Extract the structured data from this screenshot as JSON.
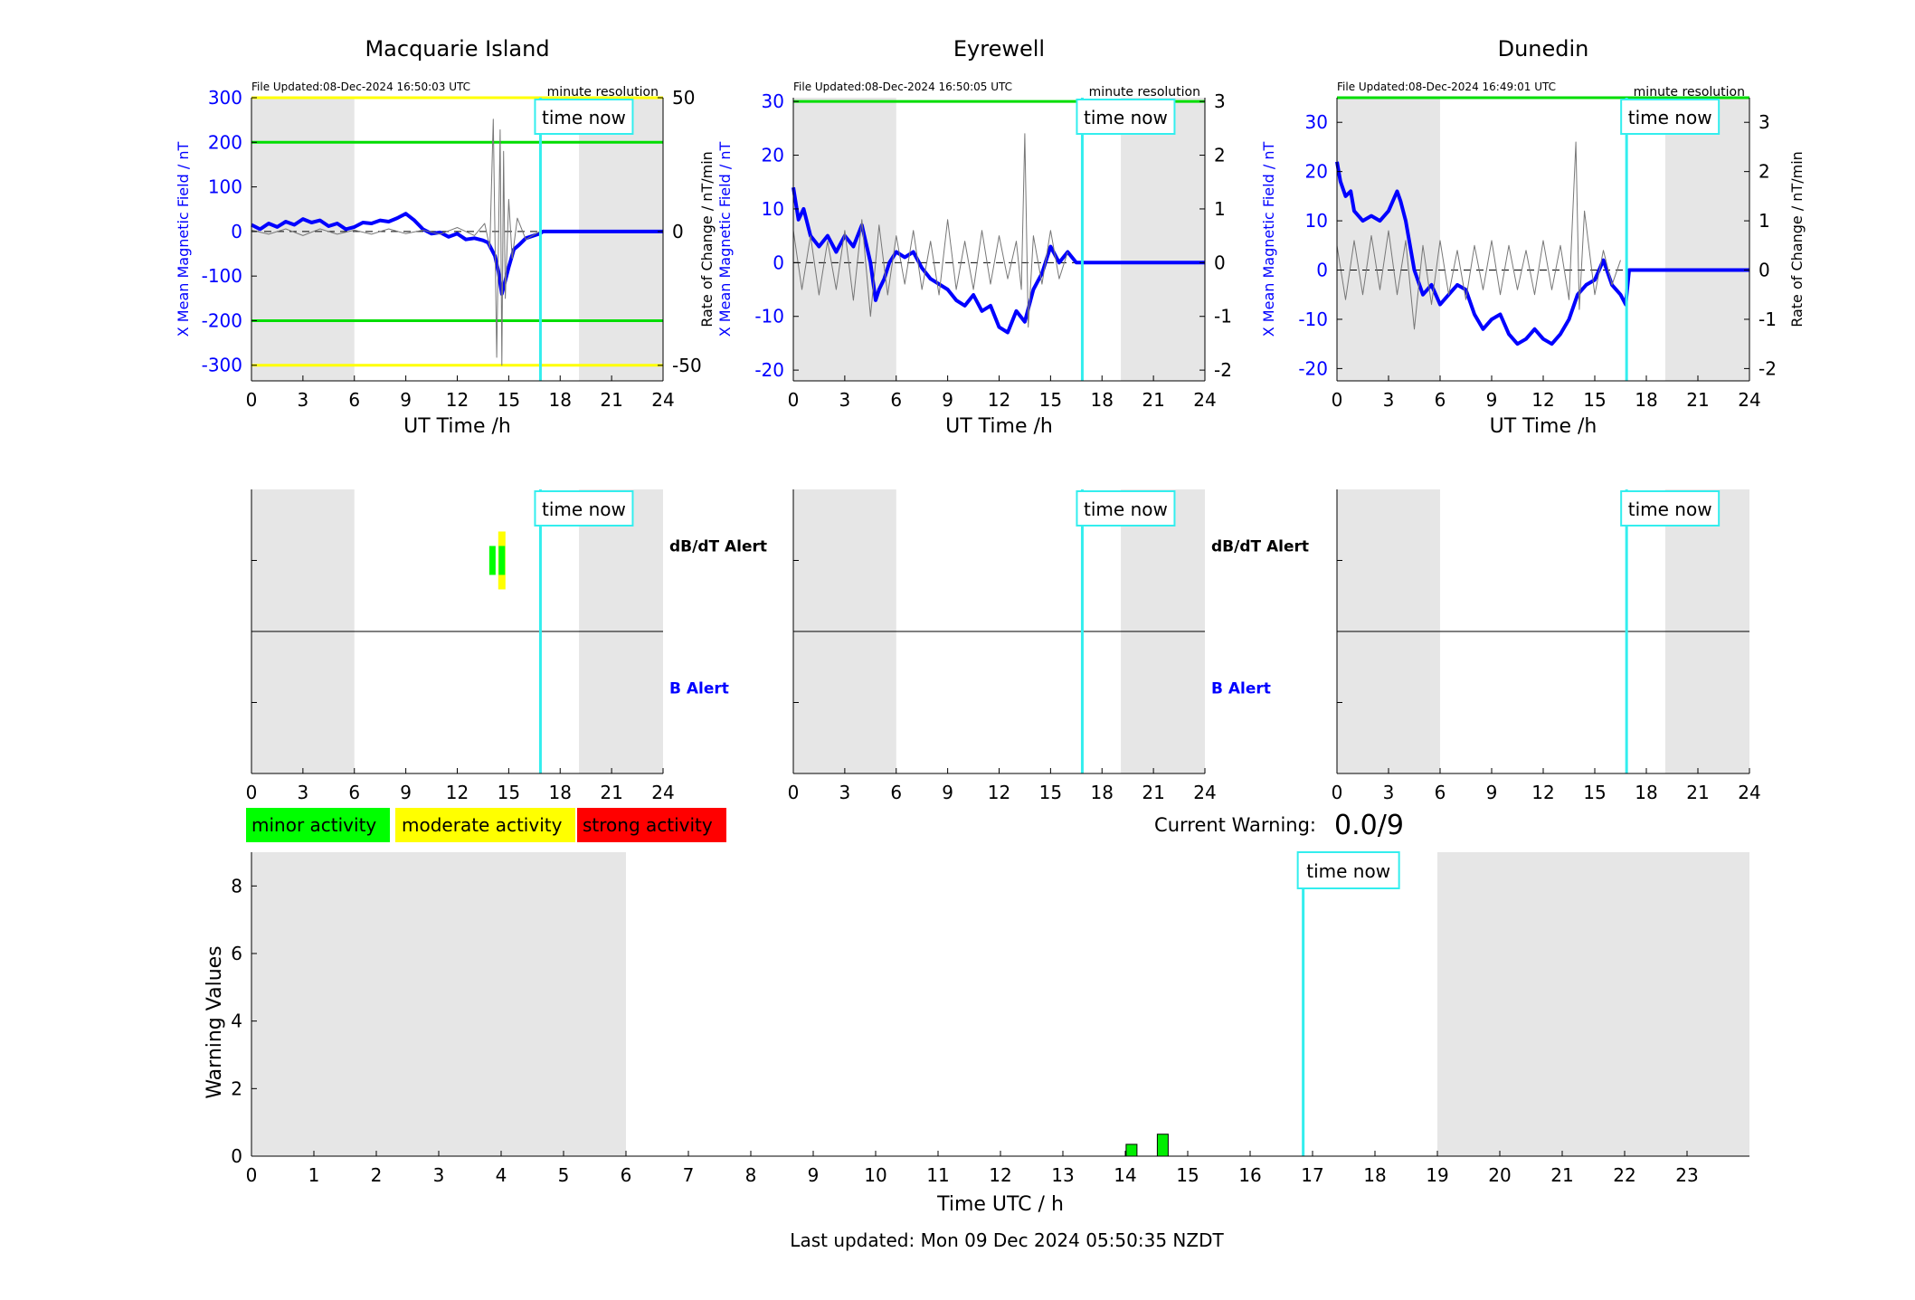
{
  "figure": {
    "last_updated": "Last updated: Mon 09 Dec 2024 05:50:35 NZDT",
    "current_warning_label": "Current Warning:",
    "current_warning_value": "0.0/9",
    "time_now_label": "time now",
    "time_now_ut": 16.85
  },
  "chart_data": [
    {
      "type": "line",
      "title": "Macquarie Island",
      "file_updated": "File Updated:08-Dec-2024 16:50:03 UTC",
      "resolution": "minute resolution",
      "xlabel": "UT Time /h",
      "ylabel": "X Mean Magnetic Field / nT",
      "y2label": "",
      "xlim": [
        0,
        24
      ],
      "ylim": [
        -335,
        300
      ],
      "y2lim": [
        -55.8,
        50
      ],
      "xticks": [
        0,
        3,
        6,
        9,
        12,
        15,
        18,
        21,
        24
      ],
      "yticks": [
        -300,
        -200,
        -100,
        0,
        100,
        200,
        300
      ],
      "y2ticks": [
        -50,
        0,
        50
      ],
      "night_shading": [
        [
          0,
          6
        ],
        [
          19.1,
          24
        ]
      ],
      "threshold_lines": [
        {
          "y": 200,
          "color": "#00dd00"
        },
        {
          "y": -200,
          "color": "#00dd00"
        },
        {
          "y": 300,
          "color": "#ffff00"
        },
        {
          "y": -300,
          "color": "#ffff00"
        }
      ],
      "series": [
        {
          "name": "",
          "axis": "left",
          "color": "#0000ff",
          "x": [
            0,
            0.5,
            1,
            1.5,
            2,
            2.5,
            3,
            3.5,
            4,
            4.5,
            5,
            5.5,
            6,
            6.5,
            7,
            7.5,
            8,
            8.5,
            9,
            9.5,
            10,
            10.5,
            11,
            11.5,
            12,
            12.5,
            13,
            13.5,
            13.8,
            14,
            14.2,
            14.4,
            14.6,
            14.8,
            15,
            15.3,
            15.6,
            16,
            16.4,
            16.8,
            17,
            18,
            19,
            20,
            21,
            22,
            23,
            24
          ],
          "y": [
            15,
            5,
            18,
            10,
            22,
            15,
            28,
            20,
            25,
            12,
            18,
            5,
            10,
            20,
            18,
            25,
            22,
            30,
            40,
            25,
            5,
            -5,
            -2,
            -12,
            -5,
            -18,
            -15,
            -20,
            -25,
            -40,
            -55,
            -90,
            -140,
            -110,
            -80,
            -40,
            -30,
            -15,
            -10,
            -5,
            0,
            0,
            0,
            0,
            0,
            0,
            0,
            0
          ]
        },
        {
          "name": "",
          "axis": "right",
          "color": "#777777",
          "x": [
            0,
            1,
            2,
            3,
            4,
            5,
            6,
            7,
            8,
            9,
            10,
            11,
            12,
            13,
            13.6,
            13.9,
            14.1,
            14.3,
            14.5,
            14.6,
            14.7,
            14.8,
            15,
            15.2,
            15.5,
            16,
            16.8
          ],
          "y": [
            0.5,
            -1,
            1,
            -1.5,
            1,
            -1,
            0.5,
            -1,
            1,
            -0.8,
            0.5,
            -1,
            1.5,
            -1.5,
            3,
            -6,
            42,
            -47,
            38,
            -50,
            30,
            -25,
            12,
            -10,
            5,
            -3,
            0
          ]
        }
      ]
    },
    {
      "type": "line",
      "title": "Eyrewell",
      "file_updated": "File Updated:08-Dec-2024 16:50:05 UTC",
      "resolution": "minute resolution",
      "xlabel": "UT Time /h",
      "ylabel": "X Mean Magnetic Field / nT",
      "y2label": "Rate of Change / nT/min",
      "xlim": [
        0,
        24
      ],
      "ylim": [
        -22,
        30.7
      ],
      "y2lim": [
        -2.2,
        3.07
      ],
      "xticks": [
        0,
        3,
        6,
        9,
        12,
        15,
        18,
        21,
        24
      ],
      "yticks": [
        -20,
        -10,
        0,
        10,
        20,
        30
      ],
      "y2ticks": [
        -2,
        -1,
        0,
        1,
        2,
        3
      ],
      "night_shading": [
        [
          0,
          6
        ],
        [
          19.1,
          24
        ]
      ],
      "threshold_lines": [
        {
          "y": 30,
          "color": "#00dd00"
        }
      ],
      "series": [
        {
          "name": "",
          "axis": "left",
          "color": "#0000ff",
          "x": [
            0,
            0.3,
            0.6,
            1,
            1.5,
            2,
            2.5,
            3,
            3.5,
            4,
            4.5,
            4.8,
            5,
            5.3,
            5.6,
            6,
            6.5,
            7,
            7.5,
            8,
            8.5,
            9,
            9.5,
            10,
            10.5,
            11,
            11.5,
            12,
            12.5,
            13,
            13.5,
            14,
            14.5,
            15,
            15.5,
            16,
            16.5,
            17,
            18,
            19,
            20,
            21,
            22,
            23,
            24
          ],
          "y": [
            14,
            8,
            10,
            5,
            3,
            5,
            2,
            5,
            3,
            7,
            0,
            -7,
            -5,
            -3,
            0,
            2,
            1,
            2,
            -1,
            -3,
            -4,
            -5,
            -7,
            -8,
            -6,
            -9,
            -8,
            -12,
            -13,
            -9,
            -11,
            -5,
            -2,
            3,
            0,
            2,
            0,
            0,
            0,
            0,
            0,
            0,
            0,
            0,
            0
          ]
        },
        {
          "name": "",
          "axis": "right",
          "color": "#777777",
          "x": [
            0,
            0.5,
            1,
            1.5,
            2,
            2.5,
            3,
            3.5,
            4,
            4.5,
            5,
            5.5,
            6,
            6.5,
            7,
            7.5,
            8,
            8.5,
            9,
            9.5,
            10,
            10.5,
            11,
            11.5,
            12,
            12.5,
            13,
            13.3,
            13.5,
            13.7,
            14,
            14.5,
            15,
            15.5,
            16
          ],
          "y": [
            0.6,
            -0.5,
            0.5,
            -0.6,
            0.4,
            -0.5,
            0.6,
            -0.7,
            0.8,
            -1,
            0.7,
            -0.6,
            0.5,
            -0.4,
            0.6,
            -0.5,
            0.4,
            -0.6,
            0.8,
            -0.5,
            0.4,
            -0.5,
            0.6,
            -0.4,
            0.5,
            -0.3,
            0.4,
            -0.5,
            2.4,
            -1.2,
            0.5,
            -0.4,
            0.6,
            -0.3,
            0.2
          ]
        }
      ]
    },
    {
      "type": "line",
      "title": "Dunedin",
      "file_updated": "File Updated:08-Dec-2024 16:49:01 UTC",
      "resolution": "minute resolution",
      "xlabel": "UT Time /h",
      "ylabel": "X Mean Magnetic Field / nT",
      "y2label": "Rate of Change / nT/min",
      "xlim": [
        0,
        24
      ],
      "ylim": [
        -22.5,
        35
      ],
      "y2lim": [
        -2.25,
        3.5
      ],
      "xticks": [
        0,
        3,
        6,
        9,
        12,
        15,
        18,
        21,
        24
      ],
      "yticks": [
        -20,
        -10,
        0,
        10,
        20,
        30
      ],
      "y2ticks": [
        -2,
        -1,
        0,
        1,
        2,
        3
      ],
      "night_shading": [
        [
          0,
          6
        ],
        [
          19.1,
          24
        ]
      ],
      "threshold_lines": [
        {
          "y": 35,
          "color": "#00dd00"
        }
      ],
      "series": [
        {
          "name": "",
          "axis": "left",
          "color": "#0000ff",
          "x": [
            0,
            0.2,
            0.5,
            0.8,
            1,
            1.5,
            2,
            2.5,
            3,
            3.5,
            3.7,
            4,
            4.5,
            5,
            5.5,
            6,
            6.5,
            7,
            7.5,
            8,
            8.5,
            9,
            9.5,
            10,
            10.5,
            11,
            11.5,
            12,
            12.5,
            13,
            13.5,
            14,
            14.5,
            15,
            15.5,
            16,
            16.5,
            16.8,
            17,
            18,
            19,
            20,
            21,
            22,
            23,
            24
          ],
          "y": [
            22,
            18,
            15,
            16,
            12,
            10,
            11,
            10,
            12,
            16,
            14,
            10,
            0,
            -5,
            -3,
            -7,
            -5,
            -3,
            -4,
            -9,
            -12,
            -10,
            -9,
            -13,
            -15,
            -14,
            -12,
            -14,
            -15,
            -13,
            -10,
            -5,
            -3,
            -2,
            2,
            -3,
            -5,
            -7,
            0,
            0,
            0,
            0,
            0,
            0,
            0,
            0
          ]
        },
        {
          "name": "",
          "axis": "right",
          "color": "#777777",
          "x": [
            0,
            0.5,
            1,
            1.5,
            2,
            2.5,
            3,
            3.5,
            4,
            4.5,
            5,
            5.5,
            6,
            6.5,
            7,
            7.5,
            8,
            8.5,
            9,
            9.5,
            10,
            10.5,
            11,
            11.5,
            12,
            12.5,
            13,
            13.5,
            13.9,
            14.1,
            14.4,
            15,
            15.5,
            16,
            16.5
          ],
          "y": [
            0.5,
            -0.6,
            0.6,
            -0.5,
            0.7,
            -0.4,
            0.8,
            -0.5,
            0.6,
            -1.2,
            0.5,
            -0.7,
            0.6,
            -0.5,
            0.4,
            -0.6,
            0.5,
            -0.4,
            0.6,
            -0.5,
            0.5,
            -0.4,
            0.4,
            -0.5,
            0.6,
            -0.4,
            0.5,
            -0.6,
            2.6,
            -0.8,
            1.2,
            -0.5,
            0.4,
            -0.3,
            0.2
          ]
        }
      ]
    },
    {
      "type": "bar",
      "title": "",
      "xlabel": "",
      "xlim": [
        0,
        24
      ],
      "xticks": [
        0,
        3,
        6,
        9,
        12,
        15,
        18,
        21,
        24
      ],
      "night_shading": [
        [
          0,
          6
        ],
        [
          19.1,
          24
        ]
      ],
      "upper_label": "dB/dT Alert",
      "lower_label": "B Alert",
      "upper_alerts": [
        {
          "x": 14.05,
          "level": "minor"
        },
        {
          "x": 14.6,
          "level": "moderate"
        },
        {
          "x": 14.6,
          "level": "minor"
        }
      ],
      "lower_alerts": []
    },
    {
      "type": "bar",
      "title": "",
      "xlabel": "",
      "xlim": [
        0,
        24
      ],
      "xticks": [
        0,
        3,
        6,
        9,
        12,
        15,
        18,
        21,
        24
      ],
      "night_shading": [
        [
          0,
          6
        ],
        [
          19.1,
          24
        ]
      ],
      "upper_label": "dB/dT Alert",
      "lower_label": "B Alert",
      "upper_alerts": [],
      "lower_alerts": []
    },
    {
      "type": "bar",
      "title": "",
      "xlabel": "",
      "xlim": [
        0,
        24
      ],
      "xticks": [
        0,
        3,
        6,
        9,
        12,
        15,
        18,
        21,
        24
      ],
      "night_shading": [
        [
          0,
          6
        ],
        [
          19.1,
          24
        ]
      ],
      "upper_label": "",
      "lower_label": "",
      "upper_alerts": [],
      "lower_alerts": []
    },
    {
      "type": "bar",
      "title": "",
      "xlabel": "Time UTC / h",
      "ylabel": "Warning Values",
      "xlim": [
        0,
        24
      ],
      "ylim": [
        0,
        9
      ],
      "xticks": [
        0,
        1,
        2,
        3,
        4,
        5,
        6,
        7,
        8,
        9,
        10,
        11,
        12,
        13,
        14,
        15,
        16,
        17,
        18,
        19,
        20,
        21,
        22,
        23
      ],
      "yticks": [
        0,
        2,
        4,
        6,
        8
      ],
      "night_shading": [
        [
          0,
          6
        ],
        [
          19,
          24
        ]
      ],
      "x": [
        14.1,
        14.6
      ],
      "values": [
        0.35,
        0.65
      ],
      "bar_color": "#00ee00"
    }
  ],
  "legend": [
    {
      "label": "minor activity",
      "color": "#00ff00"
    },
    {
      "label": "moderate activity",
      "color": "#ffff00"
    },
    {
      "label": "strong activity",
      "color": "#ff0000"
    }
  ]
}
